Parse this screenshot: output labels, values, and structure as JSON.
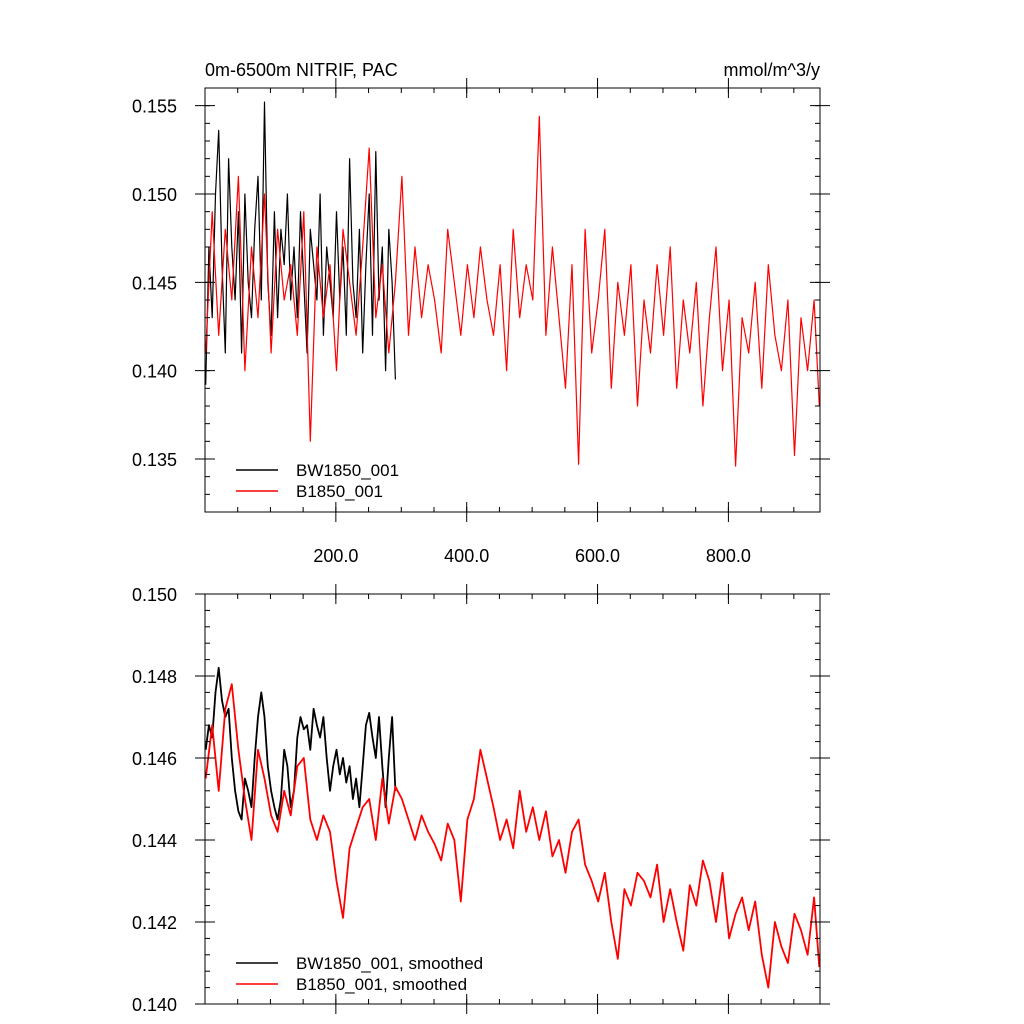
{
  "chart_data": [
    {
      "type": "line",
      "title": "0m-6500m NITRIF, PAC",
      "units": "mmol/m^3/y",
      "xlim": [
        0,
        940
      ],
      "ylim": [
        0.132,
        0.156
      ],
      "xticks": [
        200,
        400,
        600,
        800
      ],
      "xtick_labels": [
        "200.0",
        "400.0",
        "600.0",
        "800.0"
      ],
      "yticks": [
        0.135,
        0.14,
        0.145,
        0.15,
        0.155
      ],
      "ytick_labels": [
        "0.135",
        "0.140",
        "0.145",
        "0.150",
        "0.155"
      ],
      "grid": false,
      "legend_position": "bottom-left",
      "series": [
        {
          "name": "BW1850_001",
          "color": "#000000",
          "x": [
            1,
            6,
            11,
            16,
            21,
            26,
            31,
            36,
            41,
            46,
            51,
            56,
            61,
            66,
            71,
            76,
            81,
            86,
            91,
            96,
            101,
            106,
            111,
            116,
            121,
            126,
            131,
            136,
            141,
            146,
            151,
            156,
            161,
            166,
            171,
            176,
            181,
            186,
            191,
            196,
            201,
            206,
            211,
            216,
            221,
            226,
            231,
            236,
            241,
            246,
            251,
            256,
            261,
            266,
            271,
            276,
            281,
            286,
            291
          ],
          "values": [
            0.1392,
            0.147,
            0.143,
            0.15,
            0.1536,
            0.146,
            0.141,
            0.152,
            0.147,
            0.144,
            0.149,
            0.141,
            0.15,
            0.145,
            0.143,
            0.148,
            0.151,
            0.144,
            0.1552,
            0.145,
            0.142,
            0.149,
            0.143,
            0.148,
            0.146,
            0.15,
            0.144,
            0.147,
            0.143,
            0.149,
            0.145,
            0.141,
            0.148,
            0.146,
            0.144,
            0.15,
            0.142,
            0.147,
            0.145,
            0.143,
            0.149,
            0.144,
            0.147,
            0.142,
            0.152,
            0.145,
            0.143,
            0.148,
            0.141,
            0.146,
            0.15,
            0.142,
            0.1524,
            0.144,
            0.147,
            0.14,
            0.148,
            0.145,
            0.1395
          ]
        },
        {
          "name": "B1850_001",
          "color": "#ff0000",
          "x": [
            1,
            11,
            21,
            31,
            41,
            51,
            61,
            71,
            81,
            91,
            101,
            111,
            121,
            131,
            141,
            151,
            161,
            171,
            181,
            191,
            201,
            211,
            221,
            231,
            241,
            251,
            261,
            271,
            281,
            291,
            301,
            311,
            321,
            331,
            341,
            351,
            361,
            371,
            381,
            391,
            401,
            411,
            421,
            431,
            441,
            451,
            461,
            471,
            481,
            491,
            501,
            511,
            521,
            531,
            541,
            551,
            561,
            571,
            581,
            591,
            601,
            611,
            621,
            631,
            641,
            651,
            661,
            671,
            681,
            691,
            701,
            711,
            721,
            731,
            741,
            751,
            761,
            771,
            781,
            791,
            801,
            811,
            821,
            831,
            841,
            851,
            861,
            871,
            881,
            891,
            901,
            911,
            921,
            931,
            939
          ],
          "values": [
            0.141,
            0.149,
            0.142,
            0.148,
            0.144,
            0.151,
            0.14,
            0.147,
            0.143,
            0.15,
            0.141,
            0.148,
            0.144,
            0.146,
            0.142,
            0.149,
            0.136,
            0.147,
            0.143,
            0.146,
            0.14,
            0.148,
            0.145,
            0.142,
            0.147,
            0.1526,
            0.143,
            0.146,
            0.141,
            0.145,
            0.151,
            0.142,
            0.147,
            0.143,
            0.146,
            0.144,
            0.141,
            0.148,
            0.145,
            0.142,
            0.146,
            0.143,
            0.147,
            0.144,
            0.142,
            0.146,
            0.14,
            0.148,
            0.143,
            0.146,
            0.144,
            0.1544,
            0.142,
            0.147,
            0.143,
            0.139,
            0.146,
            0.1347,
            0.148,
            0.141,
            0.144,
            0.148,
            0.139,
            0.145,
            0.142,
            0.146,
            0.138,
            0.144,
            0.141,
            0.146,
            0.142,
            0.147,
            0.139,
            0.144,
            0.141,
            0.145,
            0.138,
            0.143,
            0.147,
            0.14,
            0.144,
            0.1346,
            0.143,
            0.141,
            0.145,
            0.139,
            0.146,
            0.142,
            0.14,
            0.144,
            0.1352,
            0.143,
            0.14,
            0.144,
            0.138
          ]
        }
      ]
    },
    {
      "type": "line",
      "xlim": [
        0,
        940
      ],
      "ylim": [
        0.14,
        0.15
      ],
      "xticks": [
        200,
        400,
        600,
        800
      ],
      "yticks": [
        0.14,
        0.142,
        0.144,
        0.146,
        0.148,
        0.15
      ],
      "ytick_labels": [
        "0.140",
        "0.142",
        "0.144",
        "0.146",
        "0.148",
        "0.150"
      ],
      "grid": false,
      "legend_position": "bottom-left",
      "series": [
        {
          "name": "BW1850_001, smoothed",
          "color": "#000000",
          "x": [
            1,
            6,
            11,
            16,
            21,
            26,
            31,
            36,
            41,
            46,
            51,
            56,
            61,
            66,
            71,
            76,
            81,
            86,
            91,
            96,
            101,
            106,
            111,
            116,
            121,
            126,
            131,
            136,
            141,
            146,
            151,
            156,
            161,
            166,
            171,
            176,
            181,
            186,
            191,
            196,
            201,
            206,
            211,
            216,
            221,
            226,
            231,
            236,
            241,
            246,
            251,
            256,
            261,
            266,
            271,
            276,
            281,
            286,
            291
          ],
          "values": [
            0.1462,
            0.1468,
            0.1465,
            0.1476,
            0.1482,
            0.1474,
            0.147,
            0.1472,
            0.146,
            0.1452,
            0.1447,
            0.1445,
            0.1455,
            0.1452,
            0.1448,
            0.146,
            0.147,
            0.1476,
            0.147,
            0.1458,
            0.1452,
            0.1448,
            0.1445,
            0.145,
            0.1462,
            0.1458,
            0.1448,
            0.1452,
            0.1465,
            0.147,
            0.1467,
            0.1468,
            0.1462,
            0.1472,
            0.1468,
            0.1465,
            0.147,
            0.146,
            0.1452,
            0.1458,
            0.1462,
            0.1456,
            0.146,
            0.1454,
            0.1458,
            0.145,
            0.1455,
            0.1448,
            0.1458,
            0.1468,
            0.1471,
            0.1465,
            0.146,
            0.147,
            0.1458,
            0.1448,
            0.146,
            0.147,
            0.1452
          ]
        },
        {
          "name": "B1850_001, smoothed",
          "color": "#ff0000",
          "x": [
            1,
            11,
            21,
            31,
            41,
            51,
            61,
            71,
            81,
            91,
            101,
            111,
            121,
            131,
            141,
            151,
            161,
            171,
            181,
            191,
            201,
            211,
            221,
            231,
            241,
            251,
            261,
            271,
            281,
            291,
            301,
            311,
            321,
            331,
            341,
            351,
            361,
            371,
            381,
            391,
            401,
            411,
            421,
            431,
            441,
            451,
            461,
            471,
            481,
            491,
            501,
            511,
            521,
            531,
            541,
            551,
            561,
            571,
            581,
            591,
            601,
            611,
            621,
            631,
            641,
            651,
            661,
            671,
            681,
            691,
            701,
            711,
            721,
            731,
            741,
            751,
            761,
            771,
            781,
            791,
            801,
            811,
            821,
            831,
            841,
            851,
            861,
            871,
            881,
            891,
            901,
            911,
            921,
            931,
            939
          ],
          "values": [
            0.1455,
            0.1468,
            0.1452,
            0.1472,
            0.1478,
            0.1462,
            0.145,
            0.144,
            0.1462,
            0.1455,
            0.1446,
            0.1442,
            0.1452,
            0.1446,
            0.1458,
            0.146,
            0.1445,
            0.144,
            0.1446,
            0.1442,
            0.143,
            0.1421,
            0.1438,
            0.1443,
            0.1448,
            0.145,
            0.144,
            0.1455,
            0.1444,
            0.1453,
            0.145,
            0.1445,
            0.144,
            0.1446,
            0.1442,
            0.1439,
            0.1435,
            0.1444,
            0.144,
            0.1425,
            0.1445,
            0.145,
            0.1462,
            0.1455,
            0.1448,
            0.144,
            0.1445,
            0.1438,
            0.1452,
            0.1442,
            0.1448,
            0.144,
            0.1447,
            0.1436,
            0.144,
            0.1432,
            0.1442,
            0.1445,
            0.1434,
            0.143,
            0.1425,
            0.1432,
            0.142,
            0.1411,
            0.1428,
            0.1424,
            0.1432,
            0.143,
            0.1426,
            0.1434,
            0.142,
            0.1428,
            0.142,
            0.1413,
            0.1429,
            0.1424,
            0.1435,
            0.143,
            0.142,
            0.1432,
            0.1416,
            0.1422,
            0.1426,
            0.1418,
            0.1425,
            0.1412,
            0.1404,
            0.142,
            0.1414,
            0.141,
            0.1422,
            0.1418,
            0.1412,
            0.1426,
            0.1409
          ]
        }
      ]
    }
  ]
}
